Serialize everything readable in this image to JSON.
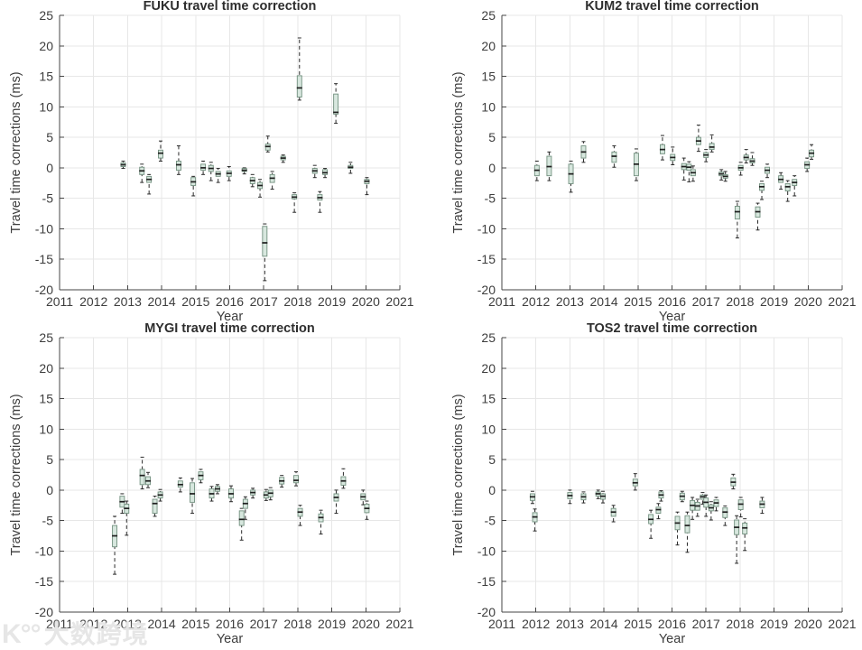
{
  "watermark": {
    "logo": "K°°",
    "text": "大数跨境"
  },
  "style": {
    "background": "#ffffff",
    "grid_color": "#e7e7e7",
    "axis_color": "#454545",
    "text_color": "#3d3d3d",
    "title_color": "#2e2e2e",
    "box_fill": "#d7e7de",
    "box_edge": "#72907f",
    "median_color": "#1f1f1f",
    "whisker_color": "#2a2a2a",
    "watermark_color": "#c3c3c3"
  },
  "chart_data": [
    {
      "type": "boxplot",
      "station": "FUKU",
      "title": "FUKU travel time correction",
      "xlabel": "Year",
      "ylabel": "Travel time corrections (ms)",
      "xlim": [
        2011,
        2021
      ],
      "ylim": [
        -20,
        25
      ],
      "xticks": [
        2011,
        2012,
        2013,
        2014,
        2015,
        2016,
        2017,
        2018,
        2019,
        2020,
        2021
      ],
      "yticks": [
        -20,
        -15,
        -10,
        -5,
        0,
        5,
        10,
        15,
        20,
        25
      ],
      "grid": true,
      "points": [
        {
          "x": 2012.87,
          "lo": -0.1,
          "q1": 0.2,
          "med": 0.5,
          "q3": 0.8,
          "hi": 1.1
        },
        {
          "x": 2013.42,
          "lo": -2.4,
          "q1": -1.1,
          "med": -0.5,
          "q3": 0.1,
          "hi": 0.6
        },
        {
          "x": 2013.63,
          "lo": -4.3,
          "q1": -2.4,
          "med": -1.9,
          "q3": -1.4,
          "hi": -1.1
        },
        {
          "x": 2013.97,
          "lo": 1.1,
          "q1": 1.6,
          "med": 2.4,
          "q3": 2.9,
          "hi": 4.4
        },
        {
          "x": 2014.5,
          "lo": -1.1,
          "q1": -0.4,
          "med": 0.5,
          "q3": 1.1,
          "hi": 3.6
        },
        {
          "x": 2014.93,
          "lo": -4.6,
          "q1": -2.9,
          "med": -2.3,
          "q3": -1.6,
          "hi": -1.4
        },
        {
          "x": 2015.22,
          "lo": -1.1,
          "q1": -0.4,
          "med": 0.0,
          "q3": 0.6,
          "hi": 1.1
        },
        {
          "x": 2015.45,
          "lo": -2.1,
          "q1": -0.6,
          "med": -0.1,
          "q3": 0.4,
          "hi": 0.9
        },
        {
          "x": 2015.66,
          "lo": -2.4,
          "q1": -1.4,
          "med": -1.0,
          "q3": -0.6,
          "hi": -0.1
        },
        {
          "x": 2015.98,
          "lo": -2.1,
          "q1": -1.4,
          "med": -0.9,
          "q3": -0.5,
          "hi": 0.2
        },
        {
          "x": 2016.43,
          "lo": -1.0,
          "q1": -0.6,
          "med": -0.4,
          "q3": -0.1,
          "hi": 0.0
        },
        {
          "x": 2016.67,
          "lo": -3.1,
          "q1": -2.6,
          "med": -2.1,
          "q3": -1.6,
          "hi": -1.1
        },
        {
          "x": 2016.89,
          "lo": -4.8,
          "q1": -3.4,
          "med": -2.9,
          "q3": -2.4,
          "hi": -1.9
        },
        {
          "x": 2017.03,
          "lo": -18.5,
          "q1": -14.5,
          "med": -12.3,
          "q3": -9.6,
          "hi": -9.2
        },
        {
          "x": 2017.12,
          "lo": 2.6,
          "q1": 2.9,
          "med": 3.5,
          "q3": 3.9,
          "hi": 5.2
        },
        {
          "x": 2017.25,
          "lo": -3.5,
          "q1": -2.4,
          "med": -1.7,
          "q3": -1.1,
          "hi": -0.6
        },
        {
          "x": 2017.57,
          "lo": 0.9,
          "q1": 1.3,
          "med": 1.6,
          "q3": 1.9,
          "hi": 2.1
        },
        {
          "x": 2017.9,
          "lo": -7.3,
          "q1": -5.1,
          "med": -4.8,
          "q3": -4.4,
          "hi": -4.1
        },
        {
          "x": 2018.05,
          "lo": 11.1,
          "q1": 11.6,
          "med": 13.1,
          "q3": 15.1,
          "hi": 21.3
        },
        {
          "x": 2018.5,
          "lo": -1.6,
          "q1": -0.9,
          "med": -0.5,
          "q3": -0.1,
          "hi": 0.4
        },
        {
          "x": 2018.65,
          "lo": -7.3,
          "q1": -5.3,
          "med": -4.9,
          "q3": -4.4,
          "hi": -3.9
        },
        {
          "x": 2018.8,
          "lo": -1.6,
          "q1": -1.1,
          "med": -0.8,
          "q3": -0.3,
          "hi": -0.1
        },
        {
          "x": 2019.12,
          "lo": 7.3,
          "q1": 8.8,
          "med": 9.1,
          "q3": 12.1,
          "hi": 13.8
        },
        {
          "x": 2019.55,
          "lo": -0.9,
          "q1": -0.1,
          "med": 0.1,
          "q3": 0.4,
          "hi": 0.9
        },
        {
          "x": 2020.03,
          "lo": -4.4,
          "q1": -2.6,
          "med": -2.2,
          "q3": -1.9,
          "hi": -1.6
        }
      ]
    },
    {
      "type": "boxplot",
      "station": "KUM2",
      "title": "KUM2 travel time correction",
      "xlabel": "Year",
      "ylabel": "Travel time corrections (ms)",
      "xlim": [
        2011,
        2021
      ],
      "ylim": [
        -20,
        25
      ],
      "xticks": [
        2011,
        2012,
        2013,
        2014,
        2015,
        2016,
        2017,
        2018,
        2019,
        2020,
        2021
      ],
      "yticks": [
        -20,
        -15,
        -10,
        -5,
        0,
        5,
        10,
        15,
        20,
        25
      ],
      "grid": true,
      "points": [
        {
          "x": 2012.03,
          "lo": -2.1,
          "q1": -1.3,
          "med": -0.4,
          "q3": 0.4,
          "hi": 1.1
        },
        {
          "x": 2012.39,
          "lo": -2.1,
          "q1": -1.3,
          "med": 0.2,
          "q3": 1.9,
          "hi": 2.6
        },
        {
          "x": 2013.03,
          "lo": -4.0,
          "q1": -2.6,
          "med": -1.0,
          "q3": 0.6,
          "hi": 1.1
        },
        {
          "x": 2013.4,
          "lo": 0.9,
          "q1": 1.6,
          "med": 2.6,
          "q3": 3.6,
          "hi": 4.3
        },
        {
          "x": 2014.3,
          "lo": 0.1,
          "q1": 0.9,
          "med": 1.9,
          "q3": 2.6,
          "hi": 3.6
        },
        {
          "x": 2014.95,
          "lo": -2.1,
          "q1": -1.3,
          "med": 0.6,
          "q3": 2.4,
          "hi": 3.1
        },
        {
          "x": 2015.72,
          "lo": 1.3,
          "q1": 2.3,
          "med": 3.0,
          "q3": 3.8,
          "hi": 5.3
        },
        {
          "x": 2016.02,
          "lo": 0.5,
          "q1": 1.2,
          "med": 1.7,
          "q3": 2.2,
          "hi": 3.4
        },
        {
          "x": 2016.35,
          "lo": -2.0,
          "q1": -0.3,
          "med": 0.2,
          "q3": 0.7,
          "hi": 1.6
        },
        {
          "x": 2016.5,
          "lo": -2.3,
          "q1": -0.4,
          "med": 0.1,
          "q3": 0.6,
          "hi": 1.0
        },
        {
          "x": 2016.62,
          "lo": -2.2,
          "q1": -1.3,
          "med": -0.8,
          "q3": -0.3,
          "hi": 0.3
        },
        {
          "x": 2016.78,
          "lo": 2.7,
          "q1": 3.8,
          "med": 4.4,
          "q3": 5.0,
          "hi": 7.0
        },
        {
          "x": 2017.0,
          "lo": 1.0,
          "q1": 1.7,
          "med": 2.1,
          "q3": 2.5,
          "hi": 3.0
        },
        {
          "x": 2017.17,
          "lo": 2.6,
          "q1": 3.0,
          "med": 3.4,
          "q3": 4.0,
          "hi": 5.4
        },
        {
          "x": 2017.45,
          "lo": -2.0,
          "q1": -1.3,
          "med": -1.0,
          "q3": -0.7,
          "hi": -0.3
        },
        {
          "x": 2017.57,
          "lo": -2.2,
          "q1": -1.7,
          "med": -1.4,
          "q3": -1.1,
          "hi": -0.6
        },
        {
          "x": 2017.92,
          "lo": -11.5,
          "q1": -8.4,
          "med": -7.2,
          "q3": -6.3,
          "hi": -5.5
        },
        {
          "x": 2018.02,
          "lo": -1.2,
          "q1": -0.4,
          "med": 0.0,
          "q3": 0.4,
          "hi": 0.9
        },
        {
          "x": 2018.18,
          "lo": 0.8,
          "q1": 1.3,
          "med": 1.7,
          "q3": 2.1,
          "hi": 3.0
        },
        {
          "x": 2018.36,
          "lo": 0.4,
          "q1": 0.8,
          "med": 1.1,
          "q3": 1.5,
          "hi": 2.5
        },
        {
          "x": 2018.52,
          "lo": -10.2,
          "q1": -8.1,
          "med": -7.2,
          "q3": -6.4,
          "hi": -5.8
        },
        {
          "x": 2018.64,
          "lo": -5.2,
          "q1": -3.7,
          "med": -3.1,
          "q3": -2.6,
          "hi": -2.2
        },
        {
          "x": 2018.8,
          "lo": -1.6,
          "q1": -0.9,
          "med": -0.4,
          "q3": 0.1,
          "hi": 0.6
        },
        {
          "x": 2019.2,
          "lo": -3.5,
          "q1": -2.4,
          "med": -1.9,
          "q3": -1.3,
          "hi": -0.8
        },
        {
          "x": 2019.4,
          "lo": -5.5,
          "q1": -3.8,
          "med": -3.1,
          "q3": -2.6,
          "hi": -2.1
        },
        {
          "x": 2019.6,
          "lo": -4.6,
          "q1": -2.9,
          "med": -2.4,
          "q3": -1.9,
          "hi": -1.3
        },
        {
          "x": 2019.97,
          "lo": -0.6,
          "q1": -0.1,
          "med": 0.5,
          "q3": 1.0,
          "hi": 1.6
        },
        {
          "x": 2020.1,
          "lo": 1.4,
          "q1": 1.8,
          "med": 2.4,
          "q3": 2.9,
          "hi": 3.8
        }
      ]
    },
    {
      "type": "boxplot",
      "station": "MYGI",
      "title": "MYGI travel time correction",
      "xlabel": "Year",
      "ylabel": "Travel time corrections (ms)",
      "xlim": [
        2011,
        2021
      ],
      "ylim": [
        -20,
        25
      ],
      "xticks": [
        2011,
        2012,
        2013,
        2014,
        2015,
        2016,
        2017,
        2018,
        2019,
        2020,
        2021
      ],
      "yticks": [
        -20,
        -15,
        -10,
        -5,
        0,
        5,
        10,
        15,
        20,
        25
      ],
      "grid": true,
      "points": [
        {
          "x": 2012.62,
          "lo": -13.8,
          "q1": -9.3,
          "med": -7.5,
          "q3": -5.8,
          "hi": -4.3
        },
        {
          "x": 2012.84,
          "lo": -3.8,
          "q1": -2.8,
          "med": -1.9,
          "q3": -1.0,
          "hi": -0.6
        },
        {
          "x": 2012.97,
          "lo": -7.4,
          "q1": -3.8,
          "med": -3.0,
          "q3": -2.3,
          "hi": -1.8
        },
        {
          "x": 2013.43,
          "lo": 0.2,
          "q1": 0.9,
          "med": 2.4,
          "q3": 3.4,
          "hi": 5.4
        },
        {
          "x": 2013.6,
          "lo": 0.4,
          "q1": 0.9,
          "med": 1.5,
          "q3": 2.2,
          "hi": 2.9
        },
        {
          "x": 2013.8,
          "lo": -4.3,
          "q1": -3.8,
          "med": -2.2,
          "q3": -1.5,
          "hi": -1.0
        },
        {
          "x": 2013.96,
          "lo": -1.8,
          "q1": -1.3,
          "med": -0.8,
          "q3": -0.3,
          "hi": 0.1
        },
        {
          "x": 2014.55,
          "lo": -0.3,
          "q1": 0.5,
          "med": 0.9,
          "q3": 1.5,
          "hi": 2.0
        },
        {
          "x": 2014.9,
          "lo": -3.8,
          "q1": -2.0,
          "med": -0.6,
          "q3": 1.2,
          "hi": 1.9
        },
        {
          "x": 2015.15,
          "lo": 1.2,
          "q1": 1.7,
          "med": 2.4,
          "q3": 3.0,
          "hi": 3.4
        },
        {
          "x": 2015.47,
          "lo": -1.8,
          "q1": -1.3,
          "med": -0.6,
          "q3": 0.2,
          "hi": 0.6
        },
        {
          "x": 2015.64,
          "lo": -0.6,
          "q1": -0.2,
          "med": 0.2,
          "q3": 0.6,
          "hi": 0.9
        },
        {
          "x": 2016.04,
          "lo": -1.9,
          "q1": -1.3,
          "med": -0.6,
          "q3": 0.2,
          "hi": 0.7
        },
        {
          "x": 2016.35,
          "lo": -8.2,
          "q1": -5.8,
          "med": -4.8,
          "q3": -3.4,
          "hi": -3.0
        },
        {
          "x": 2016.46,
          "lo": -4.8,
          "q1": -3.0,
          "med": -2.2,
          "q3": -1.5,
          "hi": -1.1
        },
        {
          "x": 2016.68,
          "lo": -1.3,
          "q1": -0.8,
          "med": -0.4,
          "q3": 0.0,
          "hi": 0.3
        },
        {
          "x": 2017.07,
          "lo": -1.7,
          "q1": -1.3,
          "med": -0.8,
          "q3": -0.3,
          "hi": 0.1
        },
        {
          "x": 2017.2,
          "lo": -1.6,
          "q1": -1.1,
          "med": -0.5,
          "q3": 0.0,
          "hi": 0.4
        },
        {
          "x": 2017.53,
          "lo": 0.5,
          "q1": 1.0,
          "med": 1.5,
          "q3": 2.1,
          "hi": 2.4
        },
        {
          "x": 2017.95,
          "lo": 0.7,
          "q1": 1.2,
          "med": 1.6,
          "q3": 2.4,
          "hi": 3.0
        },
        {
          "x": 2018.07,
          "lo": -5.8,
          "q1": -4.3,
          "med": -3.6,
          "q3": -3.0,
          "hi": -2.5
        },
        {
          "x": 2018.68,
          "lo": -7.2,
          "q1": -5.2,
          "med": -4.5,
          "q3": -3.9,
          "hi": -3.3
        },
        {
          "x": 2019.13,
          "lo": -3.8,
          "q1": -1.8,
          "med": -1.2,
          "q3": -0.6,
          "hi": 0.0
        },
        {
          "x": 2019.34,
          "lo": 0.3,
          "q1": 0.8,
          "med": 1.5,
          "q3": 2.2,
          "hi": 3.5
        },
        {
          "x": 2019.92,
          "lo": -2.4,
          "q1": -1.6,
          "med": -1.1,
          "q3": -0.6,
          "hi": 0.0
        },
        {
          "x": 2020.03,
          "lo": -4.8,
          "q1": -3.7,
          "med": -3.0,
          "q3": -2.3,
          "hi": -1.8
        }
      ]
    },
    {
      "type": "boxplot",
      "station": "TOS2",
      "title": "TOS2 travel time correction",
      "xlabel": "Year",
      "ylabel": "Travel time corrections (ms)",
      "xlim": [
        2011,
        2021
      ],
      "ylim": [
        -20,
        25
      ],
      "xticks": [
        2011,
        2012,
        2013,
        2014,
        2015,
        2016,
        2017,
        2018,
        2019,
        2020,
        2021
      ],
      "yticks": [
        -20,
        -15,
        -10,
        -5,
        0,
        5,
        10,
        15,
        20,
        25
      ],
      "grid": true,
      "points": [
        {
          "x": 2011.9,
          "lo": -2.2,
          "q1": -1.7,
          "med": -1.1,
          "q3": -0.6,
          "hi": -0.2
        },
        {
          "x": 2011.97,
          "lo": -6.7,
          "q1": -5.2,
          "med": -4.4,
          "q3": -3.7,
          "hi": -3.1
        },
        {
          "x": 2013.0,
          "lo": -2.2,
          "q1": -1.4,
          "med": -0.9,
          "q3": -0.4,
          "hi": 0.0
        },
        {
          "x": 2013.4,
          "lo": -2.1,
          "q1": -1.6,
          "med": -1.1,
          "q3": -0.6,
          "hi": -0.3
        },
        {
          "x": 2013.83,
          "lo": -1.4,
          "q1": -1.0,
          "med": -0.6,
          "q3": -0.3,
          "hi": 0.0
        },
        {
          "x": 2013.97,
          "lo": -2.1,
          "q1": -1.5,
          "med": -1.0,
          "q3": -0.6,
          "hi": -0.2
        },
        {
          "x": 2014.28,
          "lo": -5.2,
          "q1": -4.3,
          "med": -3.6,
          "q3": -3.0,
          "hi": -2.5
        },
        {
          "x": 2014.92,
          "lo": 0.0,
          "q1": 0.7,
          "med": 1.2,
          "q3": 1.8,
          "hi": 2.7
        },
        {
          "x": 2015.38,
          "lo": -7.9,
          "q1": -5.5,
          "med": -4.8,
          "q3": -4.0,
          "hi": -3.3
        },
        {
          "x": 2015.6,
          "lo": -4.7,
          "q1": -3.8,
          "med": -3.2,
          "q3": -2.8,
          "hi": -2.2
        },
        {
          "x": 2015.68,
          "lo": -1.8,
          "q1": -1.3,
          "med": -0.8,
          "q3": -0.3,
          "hi": -0.1
        },
        {
          "x": 2016.16,
          "lo": -9.0,
          "q1": -6.5,
          "med": -5.4,
          "q3": -4.3,
          "hi": -3.6
        },
        {
          "x": 2016.3,
          "lo": -1.9,
          "q1": -1.6,
          "med": -1.0,
          "q3": -0.5,
          "hi": -0.2
        },
        {
          "x": 2016.45,
          "lo": -10.2,
          "q1": -7.0,
          "med": -5.8,
          "q3": -4.2,
          "hi": -3.6
        },
        {
          "x": 2016.6,
          "lo": -4.8,
          "q1": -3.3,
          "med": -2.5,
          "q3": -1.7,
          "hi": -1.2
        },
        {
          "x": 2016.75,
          "lo": -4.3,
          "q1": -3.3,
          "med": -2.6,
          "q3": -2.0,
          "hi": -1.5
        },
        {
          "x": 2016.9,
          "lo": -2.3,
          "q1": -1.5,
          "med": -1.1,
          "q3": -0.8,
          "hi": -0.4
        },
        {
          "x": 2017.0,
          "lo": -4.3,
          "q1": -2.8,
          "med": -2.0,
          "q3": -1.3,
          "hi": -0.8
        },
        {
          "x": 2017.15,
          "lo": -4.9,
          "q1": -3.4,
          "med": -2.9,
          "q3": -2.4,
          "hi": -1.9
        },
        {
          "x": 2017.3,
          "lo": -3.4,
          "q1": -2.7,
          "med": -2.1,
          "q3": -1.6,
          "hi": -1.2
        },
        {
          "x": 2017.56,
          "lo": -5.8,
          "q1": -4.5,
          "med": -3.6,
          "q3": -2.9,
          "hi": -2.6
        },
        {
          "x": 2017.8,
          "lo": 0.2,
          "q1": 0.7,
          "med": 1.3,
          "q3": 2.0,
          "hi": 2.6
        },
        {
          "x": 2017.9,
          "lo": -12.0,
          "q1": -7.3,
          "med": -6.1,
          "q3": -4.9,
          "hi": -4.2
        },
        {
          "x": 2018.02,
          "lo": -4.4,
          "q1": -3.2,
          "med": -2.3,
          "q3": -1.6,
          "hi": -1.2
        },
        {
          "x": 2018.14,
          "lo": -9.9,
          "q1": -7.2,
          "med": -6.2,
          "q3": -5.4,
          "hi": -4.7
        },
        {
          "x": 2018.65,
          "lo": -3.8,
          "q1": -2.9,
          "med": -2.3,
          "q3": -1.8,
          "hi": -1.2
        }
      ]
    }
  ]
}
